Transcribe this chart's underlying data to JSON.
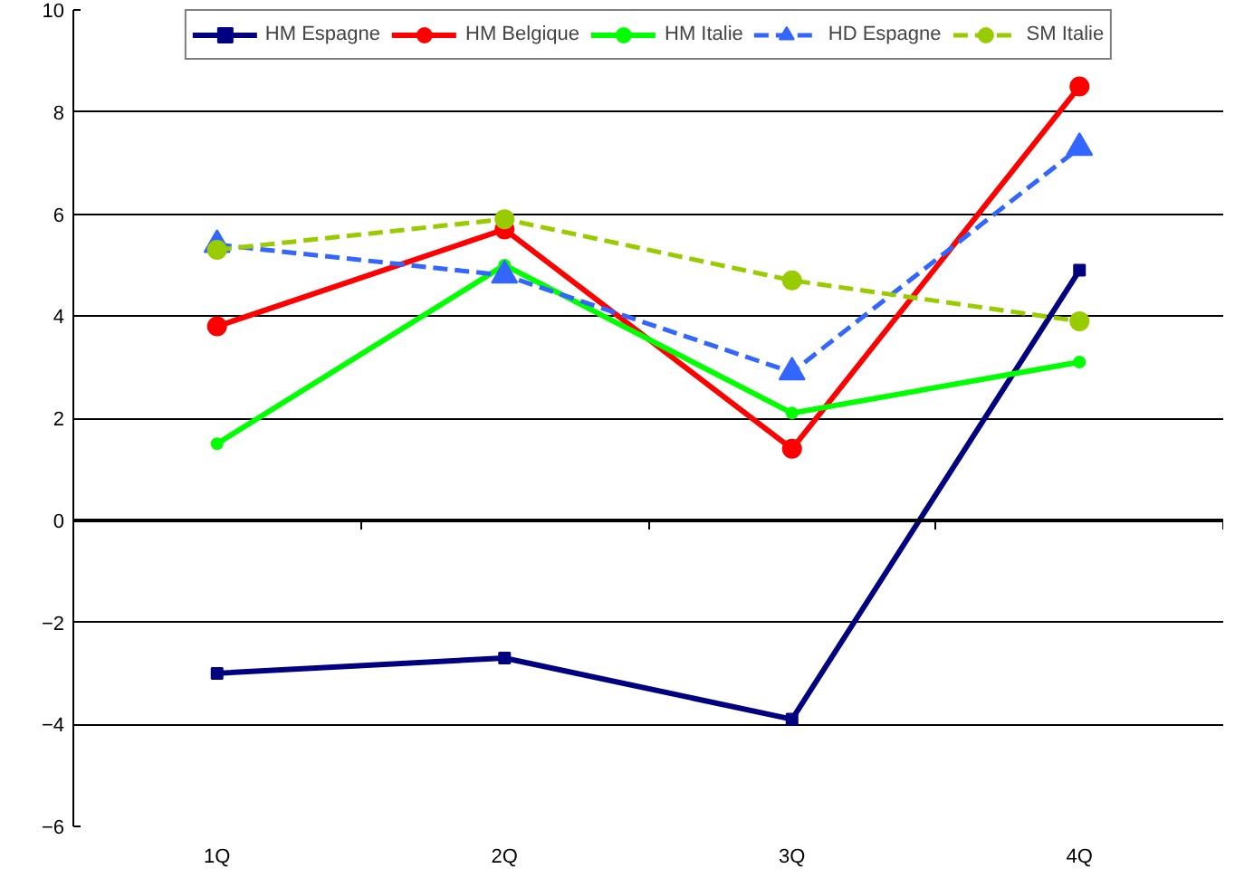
{
  "chart_data": {
    "type": "line",
    "categories": [
      "1Q",
      "2Q",
      "3Q",
      "4Q"
    ],
    "ylim": [
      -6,
      10
    ],
    "yticks": [
      -6,
      -4,
      -2,
      0,
      2,
      4,
      6,
      8,
      10
    ],
    "grid": "y",
    "legend": "top",
    "series": [
      {
        "name": "HM Espagne",
        "color": "#000080",
        "values": [
          -3.0,
          -2.7,
          -3.9,
          4.9
        ],
        "marker": "square",
        "line_style": "solid"
      },
      {
        "name": "HM Belgique",
        "color": "#ff0000",
        "values": [
          3.8,
          5.7,
          1.4,
          8.5
        ],
        "marker": "circle",
        "line_style": "solid"
      },
      {
        "name": "HM Italie",
        "color": "#00ff00",
        "values": [
          1.5,
          5.0,
          2.1,
          3.1
        ],
        "marker": "circle",
        "line_style": "solid"
      },
      {
        "name": "HD Espagne",
        "color": "#3366ff",
        "values": [
          5.4,
          4.8,
          2.9,
          7.3
        ],
        "marker": "triangle",
        "line_style": "dashed"
      },
      {
        "name": "SM Italie",
        "color": "#99cc00",
        "values": [
          5.3,
          5.9,
          4.7,
          3.9
        ],
        "marker": "circle",
        "line_style": "dashed"
      }
    ]
  }
}
